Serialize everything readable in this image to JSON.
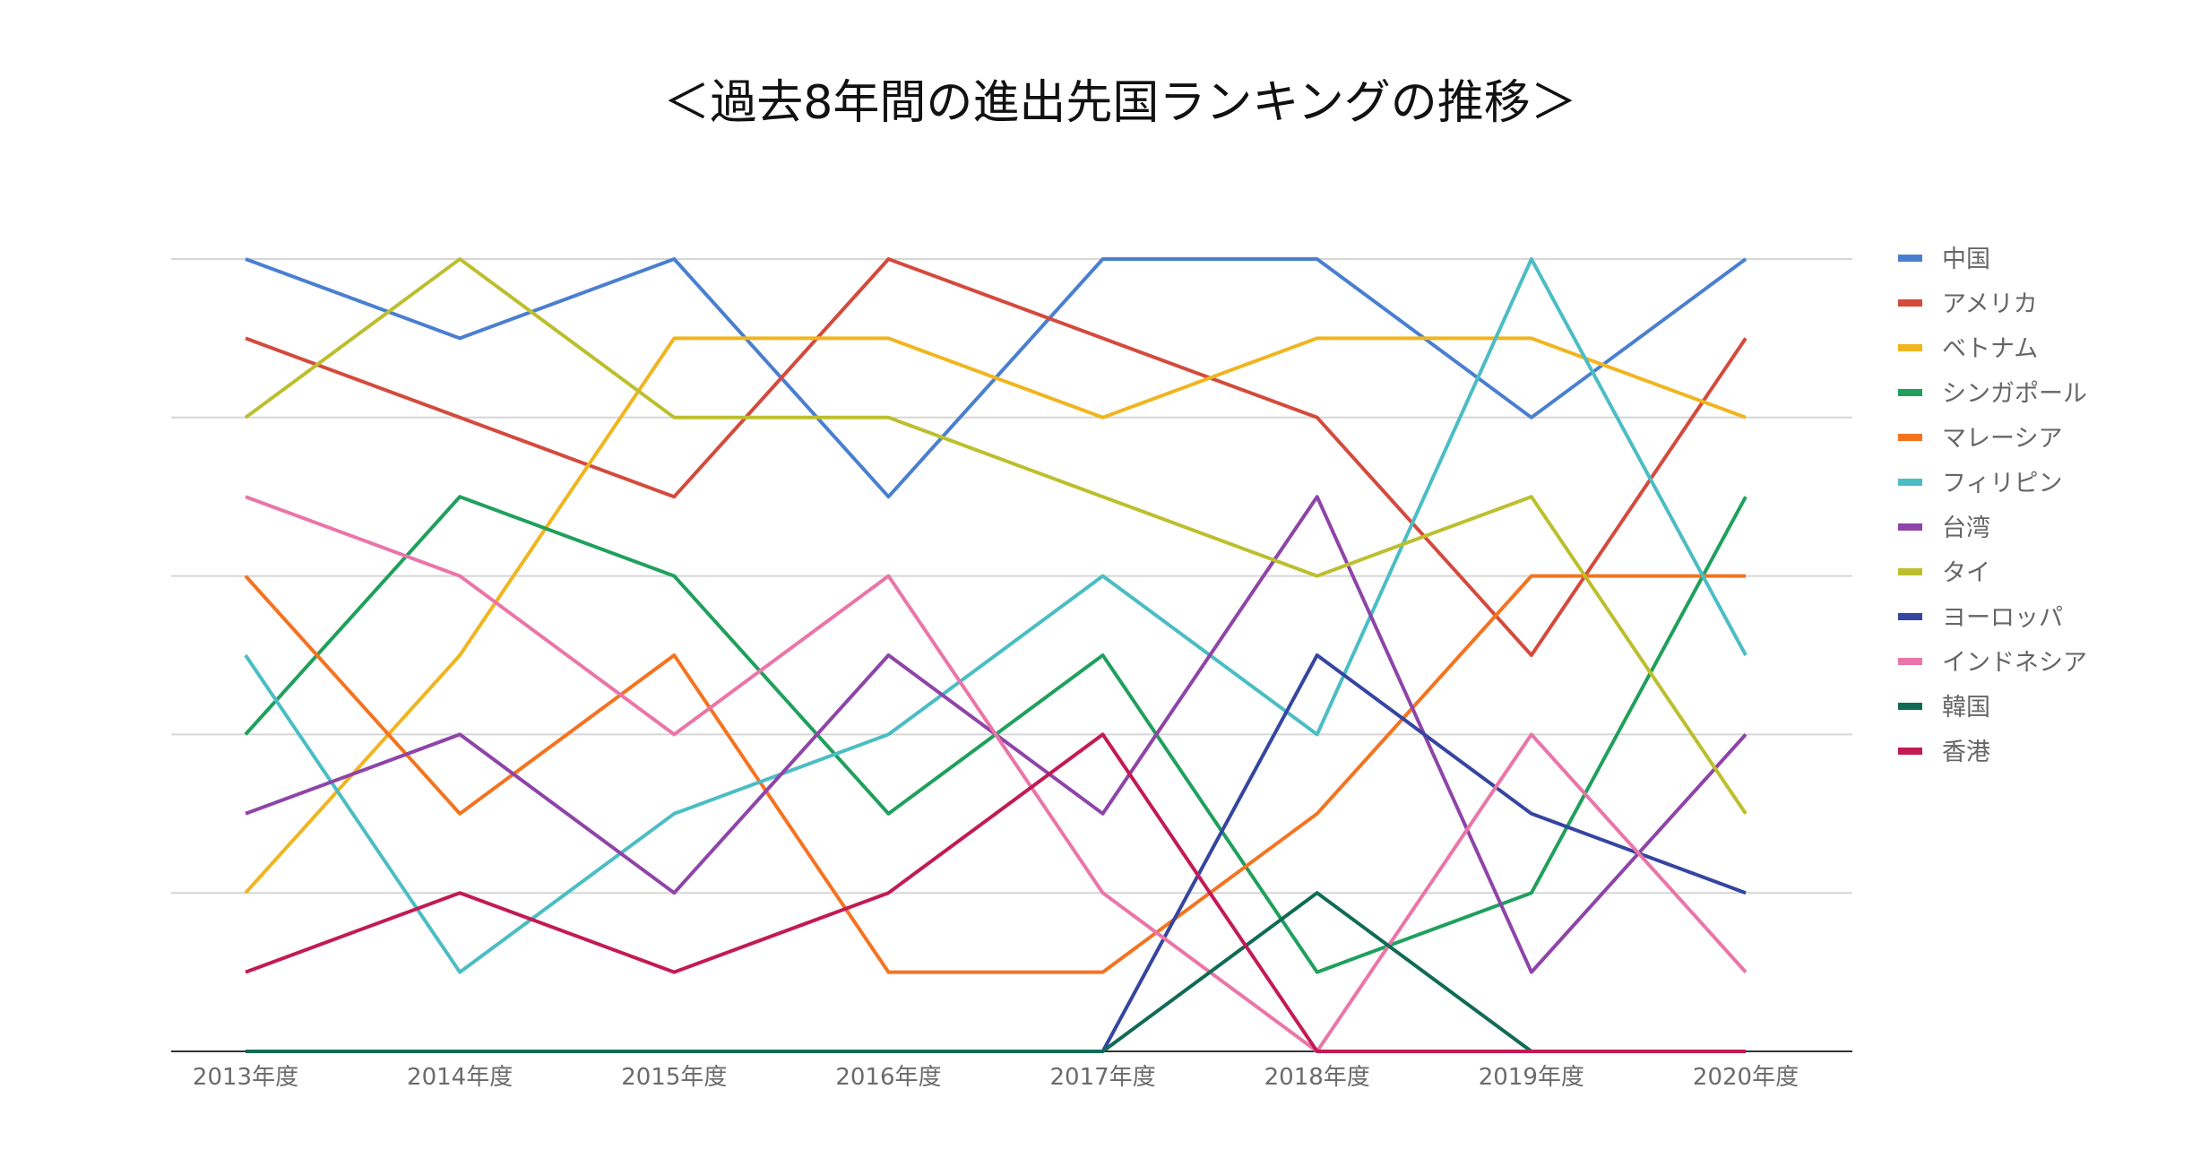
{
  "chart_data": {
    "type": "line",
    "title": "＜過去8年間の進出先国ランキングの推移＞",
    "xlabel": "",
    "ylabel": "",
    "categories": [
      "2013年度",
      "2014年度",
      "2015年度",
      "2016年度",
      "2017年度",
      "2018年度",
      "2019年度",
      "2020年度"
    ],
    "ylim": [
      0,
      10
    ],
    "y_note": "10 = top rank, 0 = not ranked",
    "grid": true,
    "legend_position": "right",
    "series": [
      {
        "name": "中国",
        "color": "#4a7fd0",
        "values": [
          10,
          9,
          10,
          7,
          10,
          10,
          8,
          10
        ]
      },
      {
        "name": "アメリカ",
        "color": "#d44a3c",
        "values": [
          9,
          8,
          7,
          10,
          9,
          8,
          5,
          9
        ]
      },
      {
        "name": "ベトナム",
        "color": "#f0b51f",
        "values": [
          2,
          5,
          9,
          9,
          8,
          9,
          9,
          8
        ]
      },
      {
        "name": "シンガポール",
        "color": "#1fa05c",
        "values": [
          4,
          7,
          6,
          3,
          5,
          1,
          2,
          7
        ]
      },
      {
        "name": "マレーシア",
        "color": "#f5731f",
        "values": [
          6,
          3,
          5,
          1,
          1,
          3,
          6,
          6
        ]
      },
      {
        "name": "フィリピン",
        "color": "#4bbdc4",
        "values": [
          5,
          1,
          3,
          4,
          6,
          4,
          10,
          5
        ]
      },
      {
        "name": "台湾",
        "color": "#8e44a8",
        "values": [
          3,
          4,
          2,
          5,
          3,
          7,
          1,
          4
        ]
      },
      {
        "name": "タイ",
        "color": "#bcbf2d",
        "values": [
          8,
          10,
          8,
          8,
          7,
          6,
          7,
          3
        ]
      },
      {
        "name": "ヨーロッパ",
        "color": "#3545a0",
        "values": [
          0,
          0,
          0,
          0,
          0,
          5,
          3,
          2
        ]
      },
      {
        "name": "インドネシア",
        "color": "#ea75a8",
        "values": [
          7,
          6,
          4,
          6,
          2,
          0,
          4,
          1
        ]
      },
      {
        "name": "韓国",
        "color": "#106b55",
        "values": [
          0,
          0,
          0,
          0,
          0,
          2,
          0,
          0
        ]
      },
      {
        "name": "香港",
        "color": "#c21a55",
        "values": [
          1,
          2,
          1,
          2,
          4,
          0,
          0,
          0
        ]
      }
    ]
  }
}
